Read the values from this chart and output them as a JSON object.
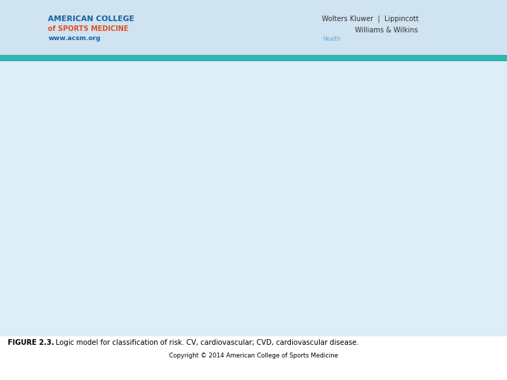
{
  "title_bold": "FIGURE 2.3.",
  "title_text": " Logic model for classification of risk. CV, cardiovascular; CVD, cardiovascular disease.",
  "copyright": "Copyright © 2014 American College of Sports Medicine",
  "header_bg": "#cfe3f0",
  "teal_stripe": "#2fb5b0",
  "body_bg": "#ddeef8",
  "box_ec": "#5a8fb5",
  "box_fc": "#ffffff",
  "box_ec2": "#2a6090",
  "arrow_color": "#4a7fa5",
  "moderate_fc": "#5ba3c9",
  "risk_fc": "#c8dff0",
  "side_text_color": "#444444",
  "caption_color": "#000000",
  "header_text_color": "#1a5fa0"
}
